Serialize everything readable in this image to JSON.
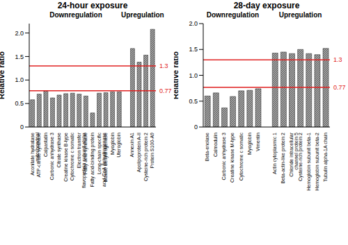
{
  "chart_data": [
    {
      "type": "bar",
      "title": "24-hour exposure",
      "annotations": [
        "Downregulation",
        "Upregulation"
      ],
      "y_label": "Relative ratio",
      "categories": [
        "Aconitate hydratase mitochondrial",
        "ATP-citrate synthase",
        "Calpastatin",
        "Carbonic anhydrase 3",
        "Citrate synthase",
        "Creatine kinase B-type",
        "Cytochrome c somatic",
        "Electron transfer flavoprotein subunit alpha",
        "Fatty acid synthase",
        "Fatty acid-binding protein",
        "Long-chain specific acyl-CoA dehydrogenase",
        "Malate dehydrogenase",
        "Myoglobin",
        "Uteroglobin",
        null,
        "Annexin A1",
        "Apolipoprotein A-II",
        "Cysteine-rich protein 2",
        "Protein S100-A9"
      ],
      "values": [
        0.58,
        0.7,
        0.77,
        0.62,
        0.68,
        0.71,
        0.72,
        0.7,
        0.66,
        0.3,
        0.72,
        0.73,
        0.75,
        0.75,
        null,
        1.67,
        1.38,
        1.53,
        2.08
      ],
      "color": "#a6a6a6",
      "ylim": [
        0,
        2.2
      ],
      "yticks": [
        0,
        0.5,
        {
          "value": 1,
          "label": "1.0"
        },
        1.5,
        {
          "value": 2,
          "label": "2.0"
        }
      ],
      "reference_lines": [
        1.3,
        0.77
      ]
    },
    {
      "type": "bar",
      "title": "28-day exposure",
      "annotations": [
        "Downregulation",
        "Upregulation"
      ],
      "y_label": "Relative ratio",
      "categories": [
        "Beta-enolase",
        "Calmodulin",
        "Carbonic anhydrase 3",
        "Creatine kinase M-type",
        "Cytochrome c somatic",
        "Myoglobin",
        "Vimentin",
        null,
        "Actin cytoplasmic 1",
        "Beta-actin-like protein 2",
        "Chloride intracellular channel protein 5",
        "Cysteine-rich protein 2",
        "Hemoglobin subunit beta-1",
        "Hemoglobin subunit beta-2",
        "Tubulin alpha-1A chain"
      ],
      "values": [
        0.6,
        0.66,
        0.37,
        0.59,
        0.7,
        0.71,
        0.74,
        null,
        1.43,
        1.45,
        1.42,
        1.5,
        1.42,
        1.4,
        1.52
      ],
      "color": "#a6a6a6",
      "ylim": [
        0,
        2
      ],
      "yticks": [
        0,
        0.5,
        {
          "value": 1,
          "label": "1.0"
        },
        1.5,
        {
          "value": 2,
          "label": "2.0"
        }
      ],
      "reference_lines": [
        1.3,
        0.77
      ]
    }
  ]
}
